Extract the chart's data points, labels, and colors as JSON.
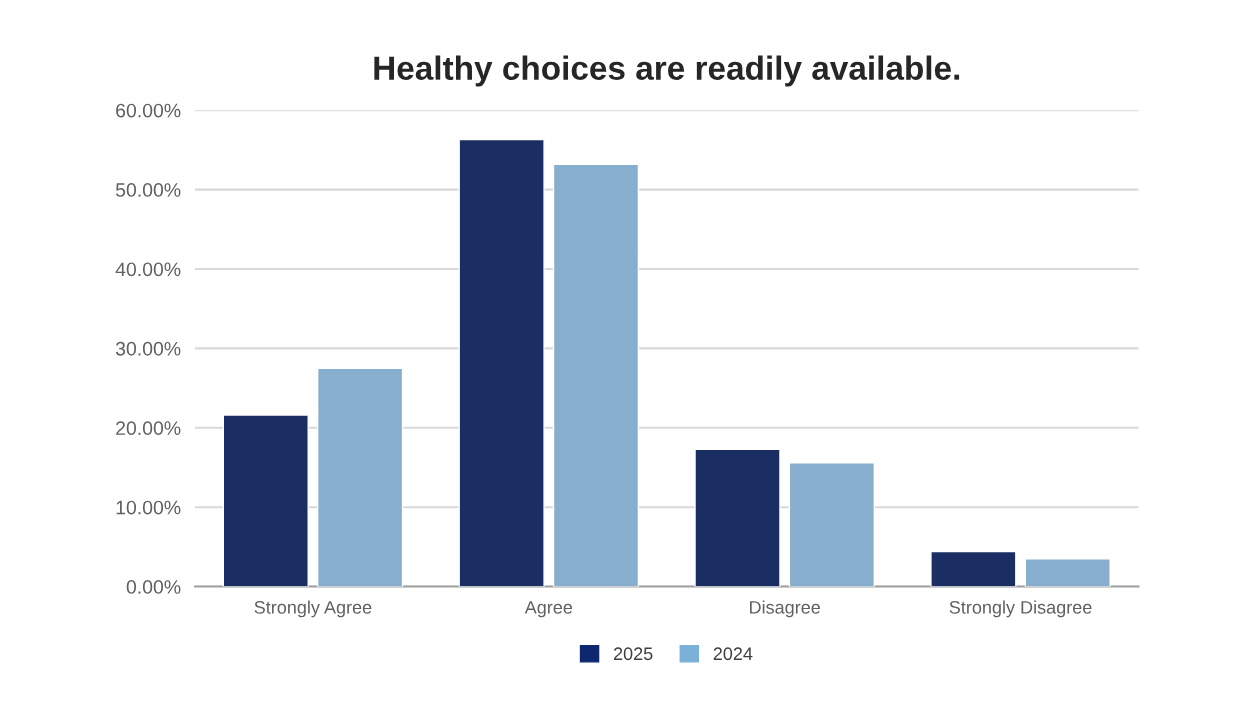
{
  "chart_data": {
    "type": "bar",
    "title": "Healthy choices are readily available.",
    "categories": [
      "Strongly Agree",
      "Agree",
      "Disagree",
      "Strongly Disagree"
    ],
    "series": [
      {
        "name": "2025",
        "color": "#0e2870",
        "values": [
          21.6,
          56.3,
          17.3,
          4.4
        ]
      },
      {
        "name": "2024",
        "color": "#7bb1d9",
        "values": [
          27.5,
          53.2,
          15.6,
          3.5
        ]
      }
    ],
    "ylim": [
      0,
      60
    ],
    "yticks": [
      {
        "value": 0,
        "label": "0.00%"
      },
      {
        "value": 10,
        "label": "10.00%"
      },
      {
        "value": 20,
        "label": "20.00%"
      },
      {
        "value": 30,
        "label": "30.00%"
      },
      {
        "value": 40,
        "label": "40.00%"
      },
      {
        "value": 50,
        "label": "50.00%"
      },
      {
        "value": 60,
        "label": "60.00%"
      }
    ],
    "grid": "y",
    "legend": "bottom"
  }
}
